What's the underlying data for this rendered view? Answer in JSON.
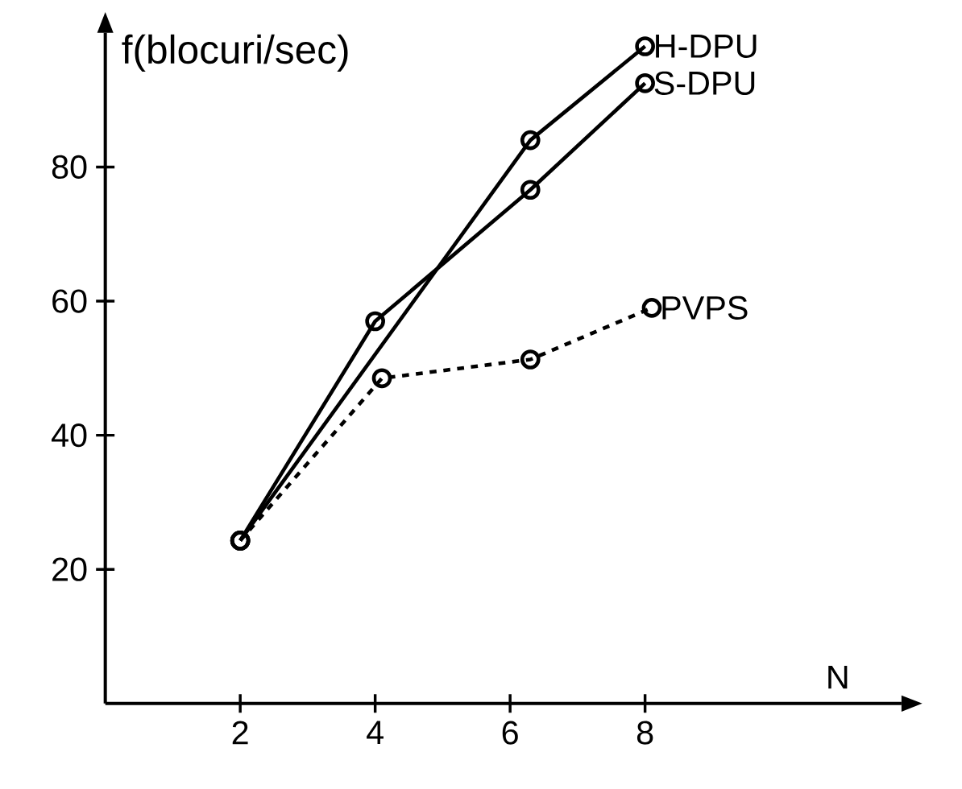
{
  "chart_data": {
    "type": "line",
    "ylabel": "f(blocuri/sec)",
    "xlabel": "N",
    "xlim": [
      0,
      11.8
    ],
    "ylim": [
      0,
      100
    ],
    "xticks": [
      2,
      4,
      6,
      8
    ],
    "yticks": [
      20,
      40,
      60,
      80
    ],
    "marker": "circle",
    "grid": false,
    "legend": false,
    "series": [
      {
        "name": "H-DPU",
        "color": "#000000",
        "x": [
          2,
          6.3,
          8
        ],
        "values": [
          24.3,
          84,
          98
        ],
        "line_style": "solid"
      },
      {
        "name": "S-DPU",
        "color": "#000000",
        "x": [
          2,
          4,
          6.3,
          8
        ],
        "values": [
          24.3,
          57,
          76.6,
          92.5
        ],
        "line_style": "solid"
      },
      {
        "name": "PVPS",
        "color": "#000000",
        "x": [
          2,
          4.1,
          6.3,
          8.1
        ],
        "values": [
          24.3,
          48.5,
          51.3,
          59
        ],
        "line_style": "dashed"
      }
    ]
  }
}
